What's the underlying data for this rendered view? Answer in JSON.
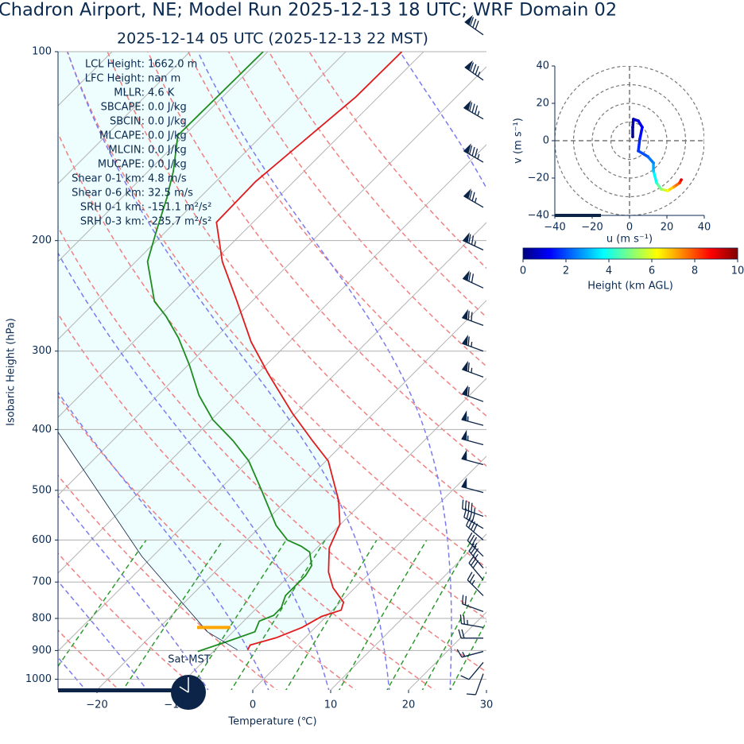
{
  "chart_data": [
    {
      "type": "skewt",
      "title": "Chadron Airport, NE; Model Run 2025-12-13 18 UTC; WRF Domain 02",
      "subtitle": "2025-12-14 05 UTC  (2025-12-13 22 MST)",
      "xlabel": "Temperature (℃)",
      "ylabel": "Isobaric Height (hPa)",
      "xlim": [
        -25,
        30
      ],
      "ylim": [
        1040,
        100
      ],
      "log_y": true,
      "grid": true,
      "xticks": [
        {
          "value": -20,
          "label": "−20"
        },
        {
          "value": -10,
          "label": "−10"
        },
        0,
        10,
        20,
        30
      ],
      "yticks": [
        100,
        200,
        300,
        400,
        500,
        600,
        700,
        800,
        900,
        1000
      ],
      "series": [
        {
          "color": "#e31a1c",
          "pressure": [
            898,
            882,
            859,
            827,
            794,
            776,
            754,
            715,
            675,
            618,
            566,
            519,
            449,
            417,
            377,
            326,
            290,
            250,
            216,
            187,
            161,
            118,
            100
          ],
          "temperature": [
            -5.8,
            -6.1,
            -3.7,
            -1.7,
            -0.6,
            1.1,
            0.4,
            -2.8,
            -5.4,
            -8.4,
            -10.1,
            -13.3,
            -19.7,
            -24.3,
            -30.4,
            -38.6,
            -44.9,
            -51.9,
            -58.9,
            -64.7,
            -64.9,
            -62.9,
            -62.8
          ]
        },
        {
          "color": "#1e8c1e",
          "pressure": [
            903,
            872,
            840,
            808,
            791,
            769,
            736,
            684,
            659,
            627,
            614,
            600,
            569,
            497,
            449,
            417,
            386,
            353,
            316,
            286,
            264,
            250,
            216,
            193,
            171,
            155,
            136,
            100
          ],
          "temperature": [
            -12.0,
            -9.6,
            -7.2,
            -8.0,
            -6.9,
            -6.9,
            -7.9,
            -7.9,
            -8.4,
            -10.4,
            -12.2,
            -14.8,
            -18.1,
            -24.8,
            -29.9,
            -34.5,
            -39.8,
            -44.7,
            -49.8,
            -54.7,
            -59.1,
            -62.5,
            -68.5,
            -71.3,
            -74.2,
            -76.8,
            -80.8,
            -80.6
          ]
        },
        {
          "color": "#0b2447",
          "pressure": [
            898,
            840,
            637,
            399
          ],
          "temperature": [
            -7.1,
            -13.3,
            -31.4,
            -58.8
          ]
        }
      ],
      "lcl_pressure": 827,
      "lcl_color": "#ffa500",
      "shading_color": "#eefdfd",
      "wind": {
        "color": "#0b2447",
        "pressure": [
          94,
          111,
          128,
          150,
          177,
          207,
          238,
          273,
          300,
          330,
          361,
          394,
          423,
          455,
          504,
          550,
          575,
          600,
          637,
          665,
          695,
          736,
          780,
          827,
          860,
          903,
          940,
          980
        ],
        "speed": [
          80,
          85,
          85,
          85,
          75,
          75,
          70,
          70,
          65,
          65,
          60,
          55,
          55,
          50,
          50,
          45,
          40,
          40,
          35,
          35,
          30,
          25,
          20,
          25,
          20,
          15,
          10,
          10
        ],
        "direction": [
          305,
          305,
          300,
          300,
          300,
          295,
          295,
          290,
          290,
          290,
          290,
          285,
          285,
          285,
          285,
          290,
          300,
          310,
          315,
          320,
          320,
          315,
          290,
          280,
          270,
          255,
          220,
          200
        ]
      },
      "info": [
        {
          "label": "LCL Height:",
          "value": "1662.0 m"
        },
        {
          "label": "LFC Height:",
          "value": "nan m"
        },
        {
          "label": "MLLR:",
          "value": "4.6 K"
        },
        {
          "label": "SBCAPE:",
          "value": "0.0 J/kg"
        },
        {
          "label": "SBCIN:",
          "value": "0.0 J/kg"
        },
        {
          "label": "MLCAPE:",
          "value": "0.0 J/kg"
        },
        {
          "label": "MLCIN:",
          "value": "0.0 J/kg"
        },
        {
          "label": "MUCAPE:",
          "value": "0.0 J/kg"
        },
        {
          "label": "Shear 0-1 km:",
          "value": "4.8 m/s"
        },
        {
          "label": "Shear 0-6 km:",
          "value": "32.5 m/s"
        },
        {
          "label": "SRH 0-1 km:",
          "value": "-151.1 m²/s²"
        },
        {
          "label": "SRH 0-3 km:",
          "value": "-235.7 m²/s²"
        }
      ],
      "time_label": "Sat-MST"
    },
    {
      "type": "hodograph",
      "xlabel": "u (m s⁻¹)",
      "ylabel": "v (m s⁻¹)",
      "xlim": [
        -40,
        40
      ],
      "ylim": [
        -40,
        40
      ],
      "xticks": [
        {
          "value": -40,
          "label": "−40"
        },
        {
          "value": -20,
          "label": "−20"
        },
        0,
        20,
        40
      ],
      "yticks": [
        {
          "value": -40,
          "label": "−40"
        },
        {
          "value": -20,
          "label": "−20"
        },
        0,
        20,
        40
      ],
      "rings": [
        10,
        20,
        30,
        40
      ],
      "u": [
        1.7,
        1.7,
        2.1,
        4.7,
        6.8,
        5.5,
        4.7,
        9.8,
        12.8,
        12.8,
        14.5,
        17.0,
        20.4,
        23.8,
        26.8,
        27.7
      ],
      "v": [
        2.1,
        7.2,
        11.5,
        10.6,
        7.2,
        0.9,
        -5.5,
        -8.5,
        -11.9,
        -16.2,
        -22.6,
        -26.0,
        -26.8,
        -24.7,
        -22.6,
        -20.9
      ],
      "height": [
        0,
        0.3,
        0.6,
        0.9,
        1.2,
        1.5,
        1.8,
        2.2,
        2.6,
        3.2,
        4.2,
        5.2,
        6.2,
        7.2,
        8.2,
        9.0
      ],
      "colorbar": {
        "label": "Height (km AGL)",
        "lim": [
          0,
          10
        ],
        "ticks": [
          0,
          2,
          4,
          6,
          8,
          10
        ]
      }
    }
  ]
}
